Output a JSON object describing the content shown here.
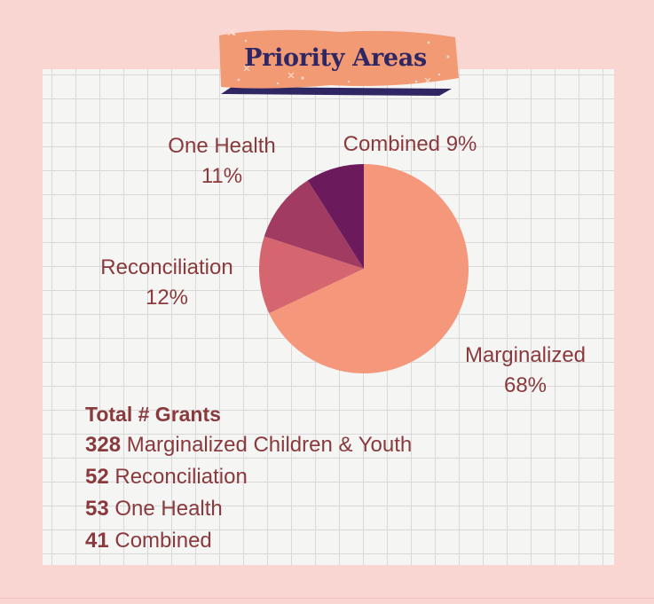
{
  "title": "Priority Areas",
  "chart_data": {
    "type": "pie",
    "title": "Priority Areas",
    "slices": [
      {
        "label": "Marginalized",
        "percent": 68,
        "color": "#f4977a"
      },
      {
        "label": "Reconciliation",
        "percent": 12,
        "color": "#d5666f"
      },
      {
        "label": "One Health",
        "percent": 11,
        "color": "#a13b62"
      },
      {
        "label": "Combined",
        "percent": 9,
        "color": "#6b1a5b"
      }
    ]
  },
  "labels": {
    "one_health_name": "One Health",
    "one_health_pct": "11%",
    "combined": "Combined 9%",
    "reconciliation_name": "Reconciliation",
    "reconciliation_pct": "12%",
    "marginalized_name": "Marginalized",
    "marginalized_pct": "68%"
  },
  "totals": {
    "heading": "Total # Grants",
    "rows": [
      {
        "count": "328",
        "label": "Marginalized Children & Youth"
      },
      {
        "count": "52",
        "label": "Reconciliation"
      },
      {
        "count": "53",
        "label": "One Health"
      },
      {
        "count": "41",
        "label": "Combined"
      }
    ]
  },
  "colors": {
    "background": "#fad6d2",
    "banner": "#f19a73",
    "title_text": "#2f2764",
    "label_text": "#8a3a3d"
  }
}
